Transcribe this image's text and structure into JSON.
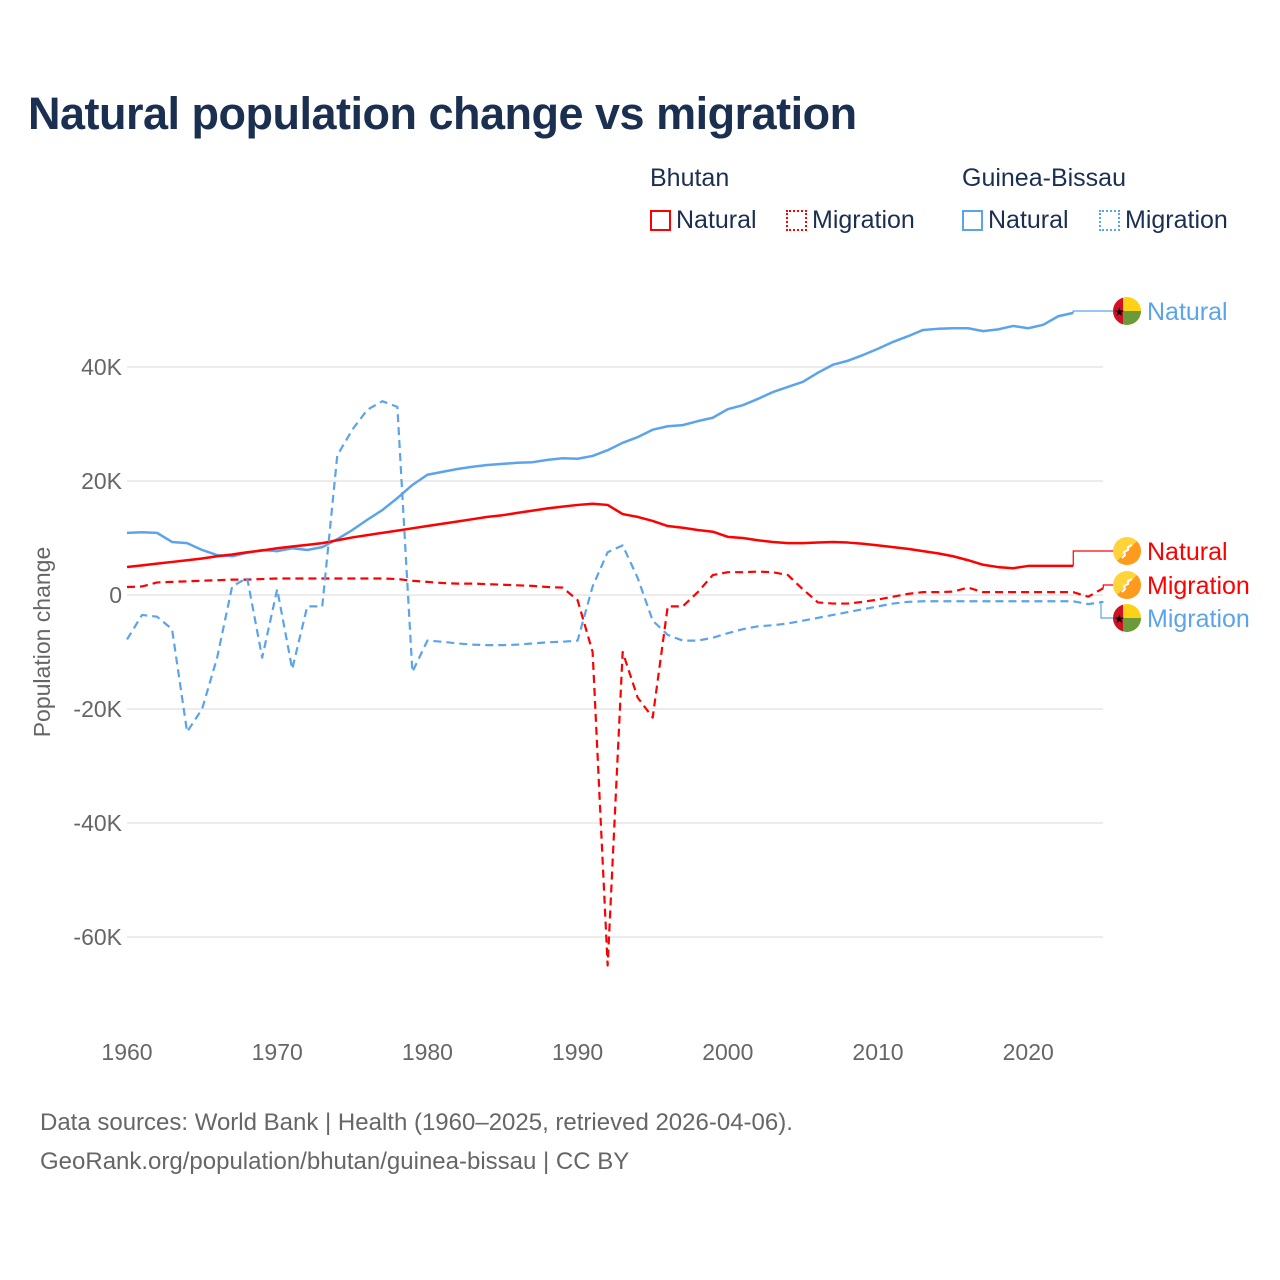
{
  "title": "Natural population change vs migration",
  "legend": {
    "groups": [
      {
        "country": "Bhutan",
        "items": [
          {
            "label": "Natural",
            "style": "solid"
          },
          {
            "label": "Migration",
            "style": "dotted"
          }
        ],
        "color": "#ff0000"
      },
      {
        "country": "Guinea-Bissau",
        "items": [
          {
            "label": "Natural",
            "style": "solid"
          },
          {
            "label": "Migration",
            "style": "dotted"
          }
        ],
        "color": "#5ba4ec"
      }
    ]
  },
  "footer": {
    "line1": "Data sources: World Bank | Health (1960–2025, retrieved 2026-04-06).",
    "line2": "GeoRank.org/population/bhutan/guinea-bissau | CC BY"
  },
  "chart_data": {
    "type": "line",
    "title": "Natural population change vs migration",
    "xlabel": "",
    "ylabel": "Population change",
    "xlim": [
      1960,
      2025
    ],
    "ylim": [
      -65000,
      50000
    ],
    "x_ticks": [
      1960,
      1970,
      1980,
      1990,
      2000,
      2010,
      2020
    ],
    "x_tick_labels": [
      "1960",
      "1970",
      "1980",
      "1990",
      "2000",
      "2010",
      "2020"
    ],
    "y_ticks": [
      40000,
      20000,
      0,
      -20000,
      -40000,
      -60000
    ],
    "y_tick_labels": [
      "40K",
      "20K",
      "0",
      "-20K",
      "-40K",
      "-60K"
    ],
    "grid": true,
    "legend_position": "top-right",
    "series": [
      {
        "name": "Guinea-Bissau Natural",
        "label": "Natural",
        "country": "Guinea-Bissau",
        "color": "#5ba4ec",
        "dash": "solid",
        "start_year": 1960,
        "values": [
          10.9,
          11.0,
          10.9,
          9.3,
          9.1,
          7.9,
          7.0,
          6.8,
          7.4,
          7.9,
          7.7,
          8.2,
          7.9,
          8.4,
          9.8,
          11.4,
          13.2,
          14.9,
          17.0,
          19.3,
          21.1,
          21.6,
          22.1,
          22.5,
          22.8,
          23.0,
          23.2,
          23.3,
          23.7,
          24.0,
          23.9,
          24.4,
          25.4,
          26.7,
          27.7,
          29.0,
          29.6,
          29.8,
          30.5,
          31.1,
          32.6,
          33.3,
          34.4,
          35.6,
          36.5,
          37.4,
          39.0,
          40.4,
          41.1,
          42.1,
          43.2,
          44.4,
          45.4,
          46.5,
          46.7,
          46.8,
          46.8,
          46.3,
          46.6,
          47.2,
          46.8,
          47.4,
          48.9,
          49.5
        ],
        "unit": "thousands"
      },
      {
        "name": "Bhutan Natural",
        "label": "Natural",
        "country": "Bhutan",
        "color": "#ff0000",
        "dash": "solid",
        "start_year": 1960,
        "values": [
          4.9,
          5.2,
          5.5,
          5.8,
          6.1,
          6.4,
          6.8,
          7.1,
          7.5,
          7.8,
          8.2,
          8.5,
          8.8,
          9.1,
          9.6,
          10.1,
          10.5,
          10.9,
          11.3,
          11.7,
          12.1,
          12.5,
          12.9,
          13.3,
          13.7,
          14.0,
          14.4,
          14.8,
          15.2,
          15.5,
          15.8,
          16.0,
          15.8,
          14.2,
          13.7,
          13.0,
          12.1,
          11.8,
          11.4,
          11.1,
          10.2,
          10.0,
          9.6,
          9.3,
          9.1,
          9.1,
          9.2,
          9.3,
          9.2,
          9.0,
          8.7,
          8.4,
          8.1,
          7.7,
          7.3,
          6.8,
          6.1,
          5.3,
          4.9,
          4.7,
          5.1,
          5.1,
          5.1,
          5.1
        ],
        "unit": "thousands"
      },
      {
        "name": "Bhutan Migration",
        "label": "Migration",
        "country": "Bhutan",
        "color": "#ff0000",
        "dash": "dashed",
        "start_year": 1960,
        "values": [
          1.4,
          1.5,
          2.2,
          2.3,
          2.4,
          2.5,
          2.6,
          2.7,
          2.7,
          2.8,
          2.9,
          2.9,
          2.9,
          2.9,
          2.9,
          2.9,
          2.9,
          2.9,
          2.8,
          2.5,
          2.3,
          2.1,
          2.0,
          2.0,
          1.9,
          1.8,
          1.7,
          1.6,
          1.4,
          1.3,
          -0.9,
          -10.0,
          -65.0,
          -10.0,
          -18.0,
          -21.5,
          -2.0,
          -2.0,
          0.5,
          3.5,
          4.0,
          4.0,
          4.1,
          4.0,
          3.5,
          1.0,
          -1.3,
          -1.5,
          -1.5,
          -1.2,
          -0.8,
          -0.3,
          0.2,
          0.5,
          0.5,
          0.6,
          1.3,
          0.5,
          0.5,
          0.5,
          0.5,
          0.5,
          0.5,
          0.5,
          -0.3,
          1.2
        ],
        "unit": "thousands"
      },
      {
        "name": "Guinea-Bissau Migration",
        "label": "Migration",
        "country": "Guinea-Bissau",
        "color": "#5ba4ec",
        "dash": "dashed",
        "start_year": 1960,
        "values": [
          -7.8,
          -3.5,
          -3.8,
          -6.0,
          -24.0,
          -20.0,
          -11.0,
          1.5,
          3.0,
          -11.0,
          1.0,
          -13.0,
          -2.0,
          -2.0,
          24.5,
          29.0,
          32.5,
          34.0,
          33.0,
          -13.5,
          -8.0,
          -8.2,
          -8.5,
          -8.7,
          -8.8,
          -8.8,
          -8.7,
          -8.5,
          -8.3,
          -8.2,
          -8.0,
          1.5,
          7.5,
          8.7,
          3.0,
          -4.5,
          -7.0,
          -8.0,
          -8.0,
          -7.5,
          -6.7,
          -6.0,
          -5.5,
          -5.3,
          -5.0,
          -4.5,
          -4.0,
          -3.5,
          -3.0,
          -2.5,
          -2.0,
          -1.5,
          -1.2,
          -1.1,
          -1.1,
          -1.1,
          -1.1,
          -1.1,
          -1.1,
          -1.1,
          -1.1,
          -1.1,
          -1.1,
          -1.1,
          -1.6,
          -1.2
        ],
        "unit": "thousands"
      }
    ],
    "end_labels": [
      {
        "series": "Guinea-Bissau Natural",
        "text": "Natural",
        "flag": "guinea-bissau-flag-icon"
      },
      {
        "series": "Bhutan Natural",
        "text": "Natural",
        "flag": "bhutan-flag-icon"
      },
      {
        "series": "Bhutan Migration",
        "text": "Migration",
        "flag": "bhutan-flag-icon"
      },
      {
        "series": "Guinea-Bissau Migration",
        "text": "Migration",
        "flag": "guinea-bissau-flag-icon"
      }
    ]
  }
}
